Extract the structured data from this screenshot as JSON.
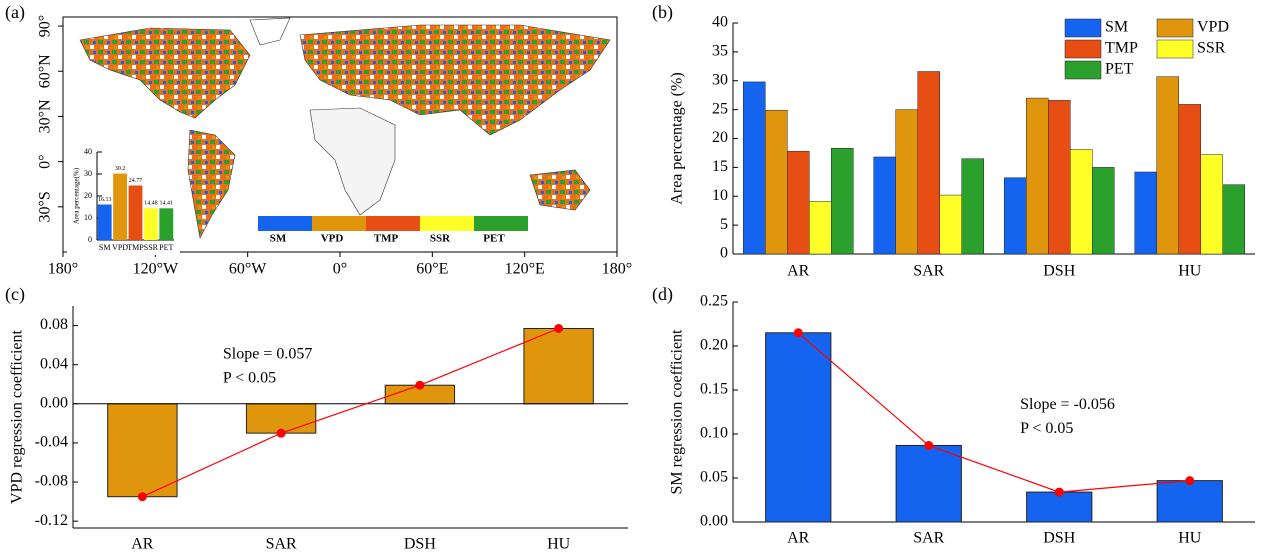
{
  "chart_data": [
    {
      "type": "map",
      "panel_label": "(a)",
      "xlim": [
        -180,
        180
      ],
      "xticks": [
        {
          "value": -180,
          "label": "180°"
        },
        {
          "value": -120,
          "label": "120°W"
        },
        {
          "value": -60,
          "label": "60°W"
        },
        {
          "value": 0,
          "label": "0°"
        },
        {
          "value": 60,
          "label": "60°E"
        },
        {
          "value": 120,
          "label": "120°E"
        },
        {
          "value": 180,
          "label": "180°"
        }
      ],
      "ylim": [
        -60,
        96
      ],
      "yticks": [
        {
          "value": -30,
          "label": "30°S"
        },
        {
          "value": 0,
          "label": "0°"
        },
        {
          "value": 30,
          "label": "30°N"
        },
        {
          "value": 60,
          "label": "60°N"
        },
        {
          "value": 90,
          "label": "90°"
        }
      ],
      "legend": {
        "categories": [
          "SM",
          "VPD",
          "TMP",
          "SSR",
          "PET"
        ],
        "colors": [
          "#1464f0",
          "#e0960c",
          "#e64e14",
          "#ffff28",
          "#2ca02c"
        ]
      }
    },
    {
      "type": "bar",
      "ylabel": "Area percentage(%)",
      "categories": [
        "SM",
        "VPD",
        "TMP",
        "SSR",
        "PET"
      ],
      "values": [
        16.13,
        30.2,
        24.77,
        14.48,
        14.41
      ],
      "colors": [
        "#1464f0",
        "#e0960c",
        "#e64e14",
        "#ffff28",
        "#2ca02c"
      ],
      "ylim": [
        0,
        40
      ],
      "yticks": [
        0,
        10,
        20,
        30,
        40
      ]
    },
    {
      "type": "grouped-bar",
      "panel_label": "(b)",
      "ylabel": "Area percentage (%)",
      "categories": [
        "AR",
        "SAR",
        "DSH",
        "HU"
      ],
      "series": [
        {
          "name": "SM",
          "color": "#1464f0",
          "values": [
            29.8,
            16.8,
            13.2,
            14.2
          ]
        },
        {
          "name": "VPD",
          "color": "#e0960c",
          "values": [
            24.9,
            25.0,
            27.0,
            30.7
          ]
        },
        {
          "name": "TMP",
          "color": "#e64e14",
          "values": [
            17.8,
            31.6,
            26.6,
            25.9
          ]
        },
        {
          "name": "SSR",
          "color": "#ffff28",
          "values": [
            9.1,
            10.2,
            18.1,
            17.2
          ]
        },
        {
          "name": "PET",
          "color": "#2ca02c",
          "values": [
            18.3,
            16.5,
            15.0,
            12.0
          ]
        }
      ],
      "ylim": [
        0,
        40
      ],
      "yticks": [
        0,
        5,
        10,
        15,
        20,
        25,
        30,
        35,
        40
      ]
    },
    {
      "type": "bar-line",
      "panel_label": "(c)",
      "ylabel": "VPD regression coefficient",
      "categories": [
        "AR",
        "SAR",
        "DSH",
        "HU"
      ],
      "values": [
        -0.095,
        -0.03,
        0.019,
        0.077
      ],
      "color": "#e0960c",
      "line_color": "#ff0000",
      "annotation": [
        "Slope = 0.057",
        "P < 0.05"
      ],
      "ylim": [
        -0.127,
        0.1
      ],
      "yticks": [
        -0.12,
        -0.08,
        -0.04,
        {
          "value": 0,
          "label": "0.00"
        },
        0.04,
        0.08
      ]
    },
    {
      "type": "bar-line",
      "panel_label": "(d)",
      "ylabel": "SM regression coefficient",
      "categories": [
        "AR",
        "SAR",
        "DSH",
        "HU"
      ],
      "values": [
        0.215,
        0.087,
        0.034,
        0.047
      ],
      "color": "#1464f0",
      "line_color": "#ff0000",
      "annotation": [
        "Slope = -0.056",
        "P < 0.05"
      ],
      "ylim": [
        0,
        0.25
      ],
      "yticks": [
        {
          "value": 0,
          "label": "0.00"
        },
        0.05,
        {
          "value": 0.1,
          "label": "0.10"
        },
        0.15,
        {
          "value": 0.2,
          "label": "0.20"
        },
        0.25
      ]
    }
  ]
}
